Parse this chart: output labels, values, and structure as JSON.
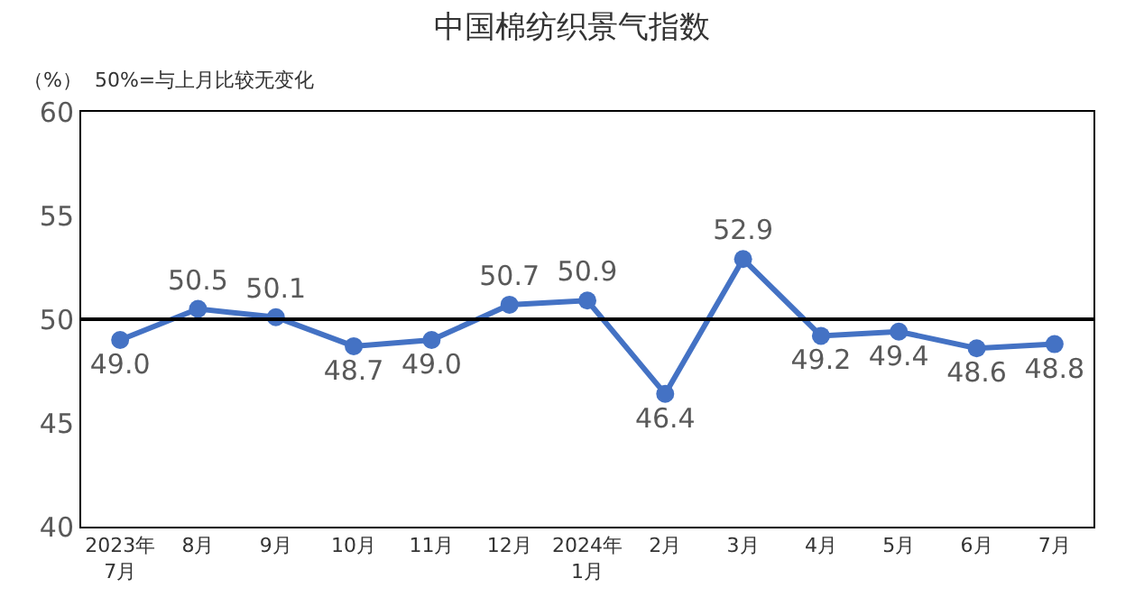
{
  "chart_data": {
    "type": "line",
    "title": "中国棉纺织景气指数",
    "annotations": [
      "（%）  50%=与上月比较无变化"
    ],
    "categories": [
      "2023年\n7月",
      "8月",
      "9月",
      "10月",
      "11月",
      "12月",
      "2024年\n1月",
      "2月",
      "3月",
      "4月",
      "5月",
      "6月",
      "7月"
    ],
    "series": [
      {
        "color": "#4472c4",
        "values": [
          49.0,
          50.5,
          50.1,
          48.7,
          49.0,
          50.7,
          50.9,
          46.4,
          52.9,
          49.2,
          49.4,
          48.6,
          48.8
        ],
        "value_labels": [
          "49.0",
          "50.5",
          "50.1",
          "48.7",
          "49.0",
          "50.7",
          "50.9",
          "46.4",
          "52.9",
          "49.2",
          "49.4",
          "48.6",
          "48.8"
        ]
      }
    ],
    "ylim": [
      40,
      60
    ],
    "yticks": [
      40,
      45,
      50,
      55,
      60
    ],
    "ref_lines": [
      {
        "axis": "y",
        "value": 50,
        "color": "#000000"
      }
    ],
    "marker": "circle",
    "line_style": "solid"
  }
}
